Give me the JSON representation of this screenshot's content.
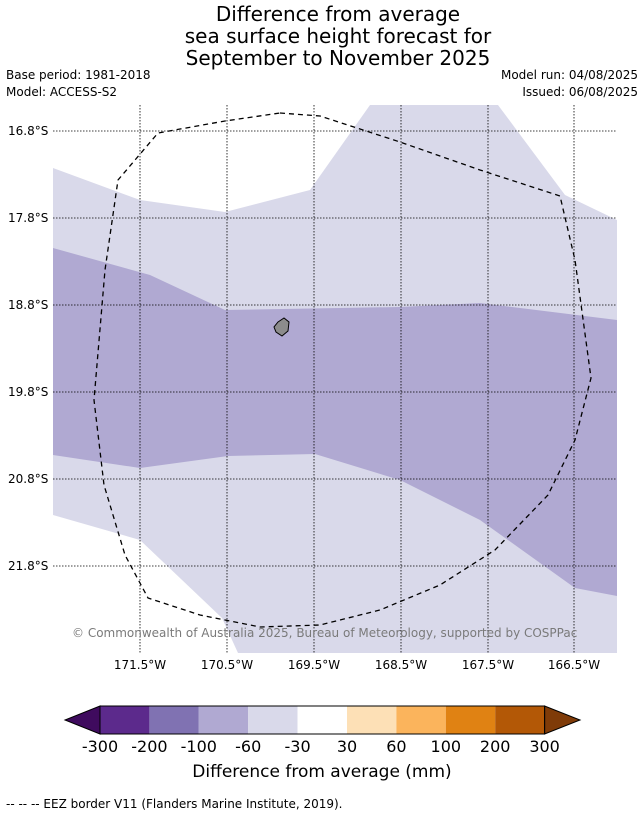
{
  "title": {
    "line1": "Difference from average",
    "line2": "sea surface height forecast for",
    "line3": "September to November 2025"
  },
  "info": {
    "base_period": "Base period: 1981-2018",
    "model": "Model: ACCESS-S2",
    "model_run": "Model run: 04/08/2025",
    "issued": "Issued: 06/08/2025"
  },
  "map": {
    "lat_labels": [
      "16.8°S",
      "17.8°S",
      "18.8°S",
      "19.8°S",
      "20.8°S",
      "21.8°S"
    ],
    "lon_labels": [
      "171.5°W",
      "170.5°W",
      "169.5°W",
      "168.5°W",
      "167.5°W",
      "166.5°W"
    ],
    "credit": "© Commonwealth of Australia 2025, Bureau of Meteorology, supported by COSPPac",
    "colors": {
      "light_purple": "#d9d9ea",
      "mid_purple": "#b0a9d2",
      "land": "#8c8c8c",
      "eez_line": "#000000"
    }
  },
  "colorbar": {
    "ticks": [
      "-300",
      "-200",
      "-100",
      "-60",
      "-30",
      "30",
      "60",
      "100",
      "200",
      "300"
    ],
    "colors": [
      "#3f0b5e",
      "#5c2a8c",
      "#8072b2",
      "#b0a9d2",
      "#d9d9ea",
      "#ffffff",
      "#fde0b6",
      "#fbb45c",
      "#e08213",
      "#b35806",
      "#7f3b08"
    ],
    "label": "Difference from average (mm)"
  },
  "footer": {
    "legend": "-- -- -- EEZ border V11 (Flanders Marine Institute, 2019)."
  }
}
